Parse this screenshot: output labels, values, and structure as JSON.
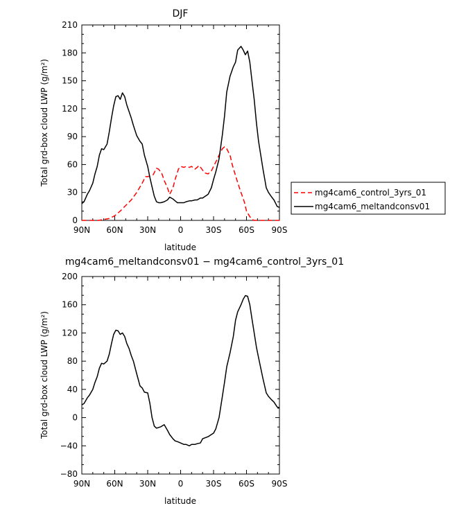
{
  "chart_data": [
    {
      "type": "line",
      "title": "DJF",
      "xlabel": "latitude",
      "ylabel": "Total grd-box cloud LWP (g/m²)",
      "xlim": [
        90,
        -90
      ],
      "ylim": [
        0,
        210
      ],
      "x_ticks": [
        90,
        60,
        30,
        0,
        -30,
        -60,
        -90
      ],
      "x_tick_labels": [
        "90N",
        "60N",
        "30N",
        "0",
        "30S",
        "60S",
        "90S"
      ],
      "y_ticks": [
        0,
        30,
        60,
        90,
        120,
        150,
        180,
        210
      ],
      "y_tick_labels": [
        "0",
        "30",
        "60",
        "90",
        "120",
        "150",
        "180",
        "210"
      ],
      "legend": "right",
      "series": [
        {
          "name": "mg4cam6_control_3yrs_01",
          "color": "#ff0000",
          "style": "dashed",
          "x": [
            90,
            80,
            75,
            70,
            65,
            60,
            55,
            50,
            45,
            40,
            35,
            32,
            30,
            27,
            25,
            22,
            20,
            17,
            15,
            12,
            10,
            7,
            5,
            2,
            0,
            -3,
            -5,
            -8,
            -10,
            -13,
            -15,
            -17,
            -20,
            -22,
            -25,
            -28,
            -30,
            -33,
            -35,
            -38,
            -40,
            -42,
            -45,
            -47,
            -50,
            -53,
            -55,
            -58,
            -60,
            -63,
            -65,
            -67,
            -70,
            -75,
            -80,
            -90
          ],
          "y": [
            0,
            0,
            0,
            1,
            2,
            5,
            10,
            16,
            22,
            30,
            40,
            47,
            47,
            48,
            49,
            56,
            55,
            50,
            43,
            35,
            28,
            35,
            44,
            55,
            58,
            57,
            58,
            57,
            58,
            55,
            57,
            59,
            54,
            51,
            50,
            53,
            58,
            65,
            70,
            77,
            79,
            77,
            70,
            60,
            48,
            37,
            30,
            20,
            10,
            4,
            1,
            0,
            0,
            0,
            0,
            0
          ]
        },
        {
          "name": "mg4cam6_meltandconsv01",
          "color": "#000000",
          "style": "solid",
          "x": [
            90,
            88,
            85,
            83,
            80,
            78,
            76,
            74,
            72,
            70,
            67,
            65,
            63,
            61,
            59,
            57,
            55,
            53,
            51,
            49,
            47,
            45,
            43,
            40,
            37,
            35,
            33,
            30,
            28,
            26,
            24,
            22,
            20,
            18,
            15,
            12,
            10,
            7,
            5,
            3,
            0,
            -3,
            -5,
            -8,
            -10,
            -13,
            -15,
            -18,
            -20,
            -25,
            -28,
            -30,
            -32,
            -35,
            -38,
            -40,
            -42,
            -45,
            -48,
            -50,
            -52,
            -55,
            -57,
            -59,
            -61,
            -63,
            -65,
            -67,
            -69,
            -71,
            -73,
            -75,
            -78,
            -80,
            -83,
            -85,
            -88,
            -90
          ],
          "y": [
            18,
            20,
            28,
            32,
            40,
            50,
            58,
            70,
            77,
            76,
            82,
            95,
            110,
            123,
            133,
            134,
            130,
            137,
            133,
            124,
            117,
            110,
            102,
            91,
            85,
            82,
            70,
            58,
            46,
            36,
            26,
            20,
            19,
            19,
            20,
            22,
            25,
            23,
            21,
            19,
            19,
            19,
            20,
            21,
            21,
            22,
            22,
            24,
            24,
            28,
            35,
            44,
            52,
            66,
            92,
            112,
            138,
            155,
            165,
            170,
            183,
            187,
            183,
            178,
            182,
            170,
            150,
            130,
            105,
            85,
            70,
            55,
            35,
            30,
            25,
            22,
            15,
            14
          ]
        }
      ]
    },
    {
      "type": "line",
      "title": "mg4cam6_meltandconsv01 − mg4cam6_control_3yrs_01",
      "xlabel": "latitude",
      "ylabel": "Total grd-box cloud LWP (g/m²)",
      "xlim": [
        90,
        -90
      ],
      "ylim": [
        -80,
        200
      ],
      "x_ticks": [
        90,
        60,
        30,
        0,
        -30,
        -60,
        -90
      ],
      "x_tick_labels": [
        "90N",
        "60N",
        "30N",
        "0",
        "30S",
        "60S",
        "90S"
      ],
      "y_ticks": [
        -80,
        -40,
        0,
        40,
        80,
        120,
        160,
        200
      ],
      "y_tick_labels": [
        "−80",
        "−40",
        "0",
        "40",
        "80",
        "120",
        "160",
        "200"
      ],
      "series": [
        {
          "color": "#000000",
          "style": "solid",
          "x": [
            90,
            88,
            85,
            83,
            80,
            78,
            76,
            74,
            72,
            70,
            67,
            65,
            63,
            61,
            59,
            57,
            55,
            53,
            51,
            49,
            47,
            45,
            43,
            40,
            37,
            35,
            33,
            30,
            28,
            26,
            24,
            22,
            20,
            18,
            15,
            12,
            10,
            7,
            5,
            3,
            0,
            -3,
            -5,
            -8,
            -10,
            -13,
            -15,
            -18,
            -20,
            -25,
            -28,
            -30,
            -32,
            -35,
            -38,
            -40,
            -42,
            -45,
            -48,
            -50,
            -52,
            -55,
            -57,
            -59,
            -61,
            -63,
            -65,
            -67,
            -69,
            -71,
            -73,
            -75,
            -78,
            -80,
            -83,
            -85,
            -88,
            -90
          ],
          "y": [
            18,
            20,
            28,
            32,
            40,
            50,
            58,
            70,
            77,
            76,
            80,
            90,
            105,
            118,
            124,
            123,
            118,
            120,
            115,
            105,
            98,
            88,
            80,
            62,
            45,
            42,
            36,
            35,
            20,
            0,
            -12,
            -15,
            -14,
            -13,
            -10,
            -18,
            -24,
            -30,
            -33,
            -34,
            -36,
            -38,
            -38,
            -40,
            -38,
            -38,
            -37,
            -36,
            -30,
            -27,
            -24,
            -22,
            -16,
            0,
            30,
            50,
            72,
            92,
            115,
            138,
            150,
            160,
            168,
            173,
            172,
            160,
            140,
            120,
            100,
            85,
            70,
            55,
            35,
            30,
            25,
            22,
            15,
            14
          ]
        }
      ]
    }
  ]
}
